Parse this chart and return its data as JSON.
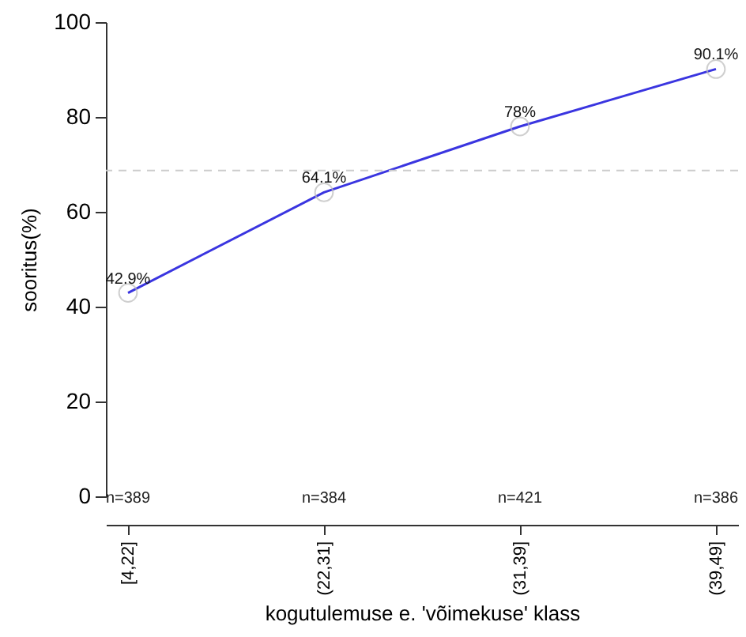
{
  "chart_data": {
    "type": "line",
    "xlabel": "kogutulemuse e. 'võimekuse' klass",
    "ylabel": "sooritus(%)",
    "categories": [
      "[4,22]",
      "(22,31]",
      "(31,39]",
      "(39,49]"
    ],
    "series": [
      {
        "color": "#3a35e0",
        "values": [
          42.9,
          64.1,
          78,
          90.1
        ],
        "value_labels": [
          "42.9%",
          "64.1%",
          "78%",
          "90.1%"
        ]
      }
    ],
    "ylim": [
      0,
      100
    ],
    "yticks": [
      0,
      20,
      40,
      60,
      80,
      100
    ],
    "grid": false,
    "marker": "circle",
    "line_style": "solid",
    "ref_lines": [
      {
        "axis": "y",
        "value": 68.7,
        "color": "#cccccc",
        "line_style": "dashed"
      }
    ],
    "annotations": [
      "n=389",
      "n=384",
      "n=421",
      "n=386"
    ]
  }
}
